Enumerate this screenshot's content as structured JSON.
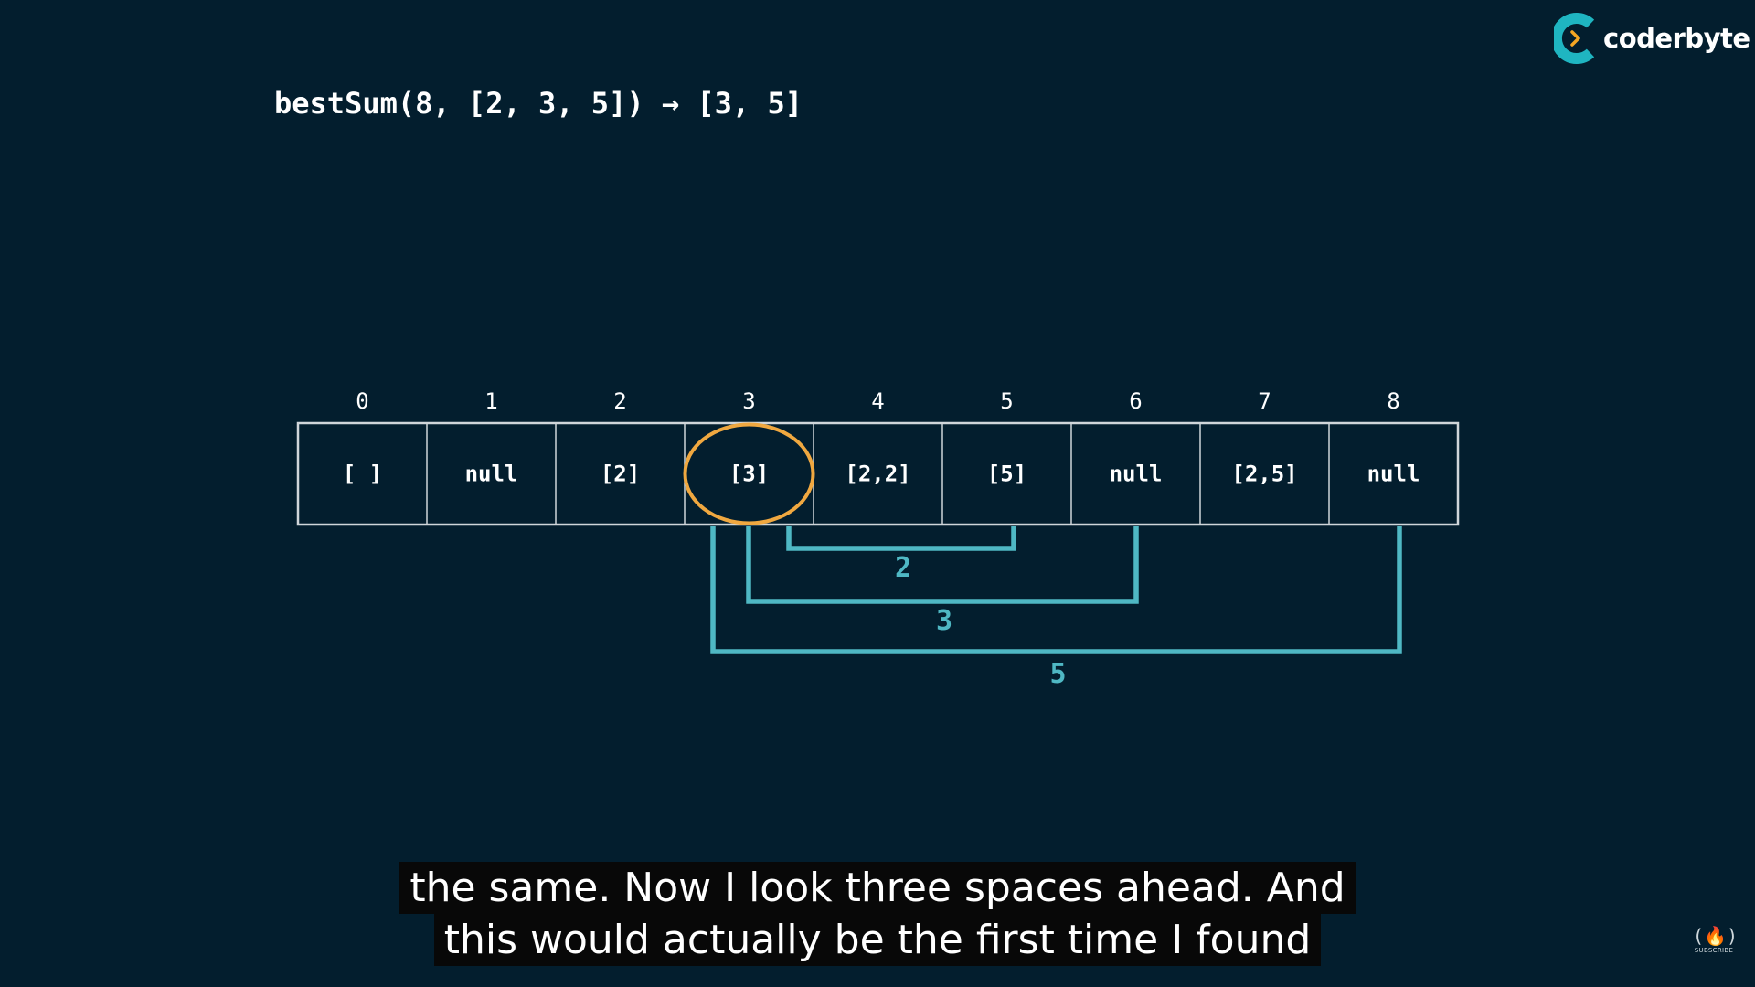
{
  "brand": {
    "name": "coderbyte",
    "colors": {
      "ring": "#1fb5c1",
      "chevron": "#f5a623"
    }
  },
  "expression": "bestSum(8, [2, 3, 5]) → [3, 5]",
  "table": {
    "indices": [
      "0",
      "1",
      "2",
      "3",
      "4",
      "5",
      "6",
      "7",
      "8"
    ],
    "cells": [
      "[ ]",
      "null",
      "[2]",
      "[3]",
      "[2,2]",
      "[5]",
      "null",
      "[2,5]",
      "null"
    ],
    "highlighted_index": 3,
    "highlight_color": "#f0a840"
  },
  "brackets": [
    {
      "label": "2",
      "from": 3,
      "to": 5
    },
    {
      "label": "3",
      "from": 3,
      "to": 6
    },
    {
      "label": "5",
      "from": 3,
      "to": 8
    }
  ],
  "bracket_color": "#4fb8c4",
  "captions": [
    "the same. Now I look three spaces ahead. And",
    "this would actually be the first time I found"
  ],
  "subscribe": {
    "icon": "freecodecamp-flame-icon",
    "glyph": "(🔥)",
    "label": "SUBSCRIBE"
  }
}
